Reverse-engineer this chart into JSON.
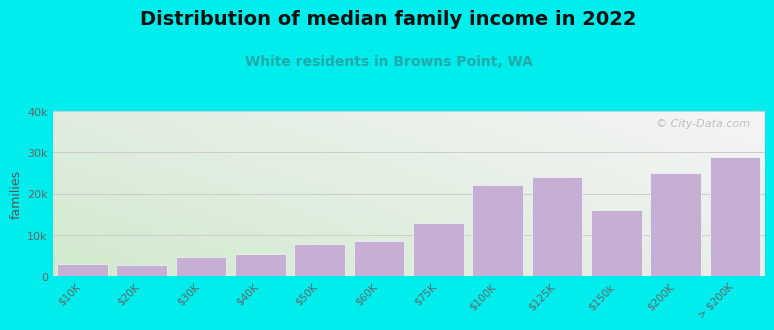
{
  "title": "Distribution of median family income in 2022",
  "subtitle": "White residents in Browns Point, WA",
  "ylabel": "families",
  "categories": [
    "$10K",
    "$20K",
    "$30K",
    "$40K",
    "$50K",
    "$60K",
    "$75K",
    "$100K",
    "$125K",
    "$150k",
    "$200K",
    "> $200K"
  ],
  "values": [
    3000,
    2700,
    4700,
    5500,
    7800,
    8500,
    13000,
    22000,
    24000,
    16000,
    25000,
    29000
  ],
  "bar_color": "#c5afd5",
  "bar_edge_color": "#c5afd5",
  "background_color": "#00eded",
  "plot_bg_color_topleft": "#ddeedd",
  "plot_bg_color_topright": "#eeeeee",
  "plot_bg_color_bottomleft": "#c8e8c0",
  "plot_bg_color_bottomright": "#f0f0f0",
  "grid_color": "#cccccc",
  "title_color": "#111111",
  "subtitle_color": "#22aaaa",
  "ylabel_color": "#555555",
  "tick_color": "#666666",
  "ylim": [
    0,
    40000
  ],
  "yticks": [
    0,
    10000,
    20000,
    30000,
    40000
  ],
  "ytick_labels": [
    "0",
    "10k",
    "20k",
    "30k",
    "40k"
  ],
  "watermark": "© City-Data.com",
  "title_fontsize": 14,
  "subtitle_fontsize": 10,
  "ylabel_fontsize": 9
}
